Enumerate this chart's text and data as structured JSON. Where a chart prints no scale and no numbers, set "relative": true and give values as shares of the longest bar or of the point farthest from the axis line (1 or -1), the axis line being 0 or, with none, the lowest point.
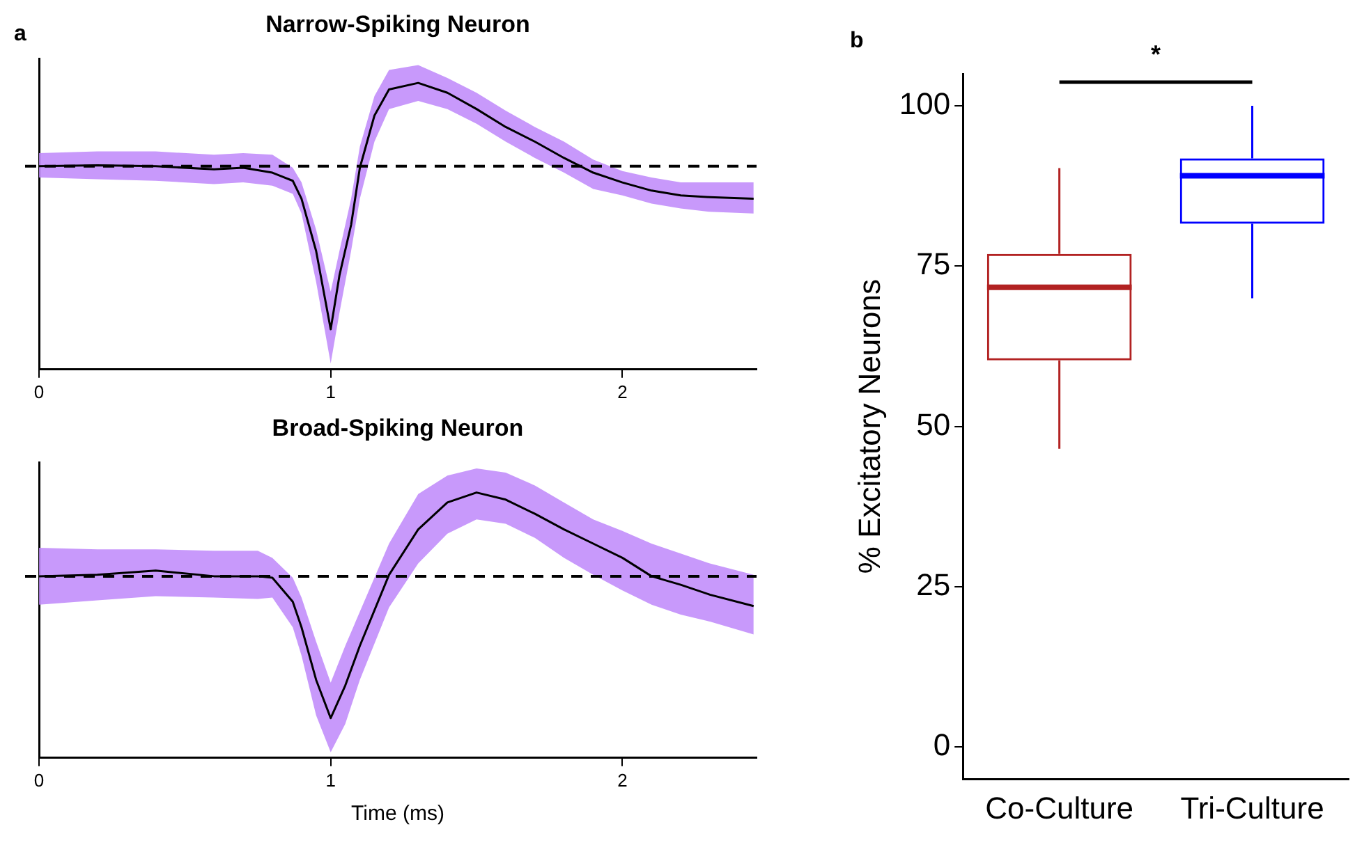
{
  "chart_data": [
    {
      "type": "line",
      "title": "Narrow-Spiking Neuron",
      "relative": true,
      "annotations": [
        "a"
      ],
      "xlim": [
        0,
        2.46
      ],
      "xticks": [
        0,
        1,
        2
      ],
      "tick_labels": "x",
      "grid": false,
      "legend": false,
      "x": [
        0,
        0.2,
        0.4,
        0.6,
        0.7,
        0.8,
        0.87,
        0.9,
        0.95,
        1.0,
        1.03,
        1.07,
        1.1,
        1.15,
        1.2,
        1.3,
        1.4,
        1.5,
        1.6,
        1.7,
        1.8,
        1.9,
        2.0,
        2.1,
        2.2,
        2.3,
        2.45
      ],
      "series": [
        {
          "color": "#000000",
          "values": [
            0,
            0.005,
            0,
            -0.02,
            -0.01,
            -0.04,
            -0.09,
            -0.2,
            -0.52,
            -1,
            -0.67,
            -0.36,
            -0.01,
            0.31,
            0.47,
            0.51,
            0.45,
            0.35,
            0.24,
            0.15,
            0.05,
            -0.04,
            -0.1,
            -0.15,
            -0.18,
            -0.19,
            -0.2
          ],
          "lower": [
            -0.07,
            -0.08,
            -0.09,
            -0.11,
            -0.1,
            -0.12,
            -0.17,
            -0.29,
            -0.71,
            -1.21,
            -0.9,
            -0.52,
            -0.2,
            0.15,
            0.35,
            0.4,
            0.35,
            0.26,
            0.15,
            0.05,
            -0.04,
            -0.14,
            -0.18,
            -0.23,
            -0.26,
            -0.28,
            -0.29
          ],
          "upper": [
            0.08,
            0.09,
            0.09,
            0.07,
            0.08,
            0.07,
            -0.01,
            -0.1,
            -0.39,
            -0.77,
            -0.52,
            -0.2,
            0.12,
            0.43,
            0.59,
            0.62,
            0.54,
            0.45,
            0.34,
            0.24,
            0.15,
            0.04,
            -0.03,
            -0.07,
            -0.1,
            -0.1,
            -0.1
          ]
        }
      ],
      "ref_lines": [
        {
          "axis": "y",
          "value": 0,
          "color": "#000000",
          "line_style": "dashed"
        }
      ]
    },
    {
      "type": "line",
      "title": "Broad-Spiking Neuron",
      "xlabel": "Time (ms)",
      "relative": true,
      "xlim": [
        0,
        2.46
      ],
      "xticks": [
        0,
        1,
        2
      ],
      "tick_labels": "x",
      "grid": false,
      "legend": false,
      "x": [
        0,
        0.2,
        0.4,
        0.6,
        0.75,
        0.8,
        0.87,
        0.9,
        0.95,
        1.0,
        1.05,
        1.1,
        1.2,
        1.3,
        1.4,
        1.5,
        1.6,
        1.7,
        1.8,
        1.9,
        2.0,
        2.1,
        2.2,
        2.3,
        2.45
      ],
      "series": [
        {
          "color": "#000000",
          "values": [
            0,
            0.01,
            0.04,
            0,
            0,
            -0.01,
            -0.18,
            -0.36,
            -0.73,
            -1,
            -0.77,
            -0.49,
            0.01,
            0.33,
            0.52,
            0.59,
            0.54,
            0.44,
            0.33,
            0.23,
            0.13,
            0,
            -0.06,
            -0.13,
            -0.21
          ],
          "lower": [
            -0.2,
            -0.17,
            -0.14,
            -0.15,
            -0.16,
            -0.15,
            -0.36,
            -0.56,
            -0.98,
            -1.24,
            -1.04,
            -0.73,
            -0.22,
            0.09,
            0.3,
            0.4,
            0.37,
            0.27,
            0.13,
            0.01,
            -0.1,
            -0.2,
            -0.27,
            -0.32,
            -0.41
          ],
          "upper": [
            0.2,
            0.19,
            0.19,
            0.18,
            0.18,
            0.13,
            -0.01,
            -0.15,
            -0.46,
            -0.75,
            -0.49,
            -0.25,
            0.23,
            0.58,
            0.71,
            0.76,
            0.73,
            0.64,
            0.52,
            0.4,
            0.32,
            0.23,
            0.16,
            0.09,
            0.01
          ]
        }
      ],
      "ref_lines": [
        {
          "axis": "y",
          "value": 0,
          "color": "#000000",
          "line_style": "dashed"
        }
      ]
    },
    {
      "type": "box",
      "ylabel": "% Excitatory Neurons",
      "annotations": [
        "b",
        "*"
      ],
      "categories": [
        "Co-Culture",
        "Tri-Culture"
      ],
      "ylim": [
        -5,
        105
      ],
      "yticks": [
        0,
        25,
        50,
        75,
        100
      ],
      "grid": false,
      "legend": false,
      "colors": [
        "#b22222",
        "#0000ff"
      ],
      "boxes": [
        {
          "low": 46.5,
          "q1": 60.3,
          "median": 71.7,
          "q3": 76.9,
          "high": 90.3
        },
        {
          "low": 70,
          "q1": 81.6,
          "median": 89.1,
          "q3": 91.8,
          "high": 100
        }
      ]
    }
  ]
}
